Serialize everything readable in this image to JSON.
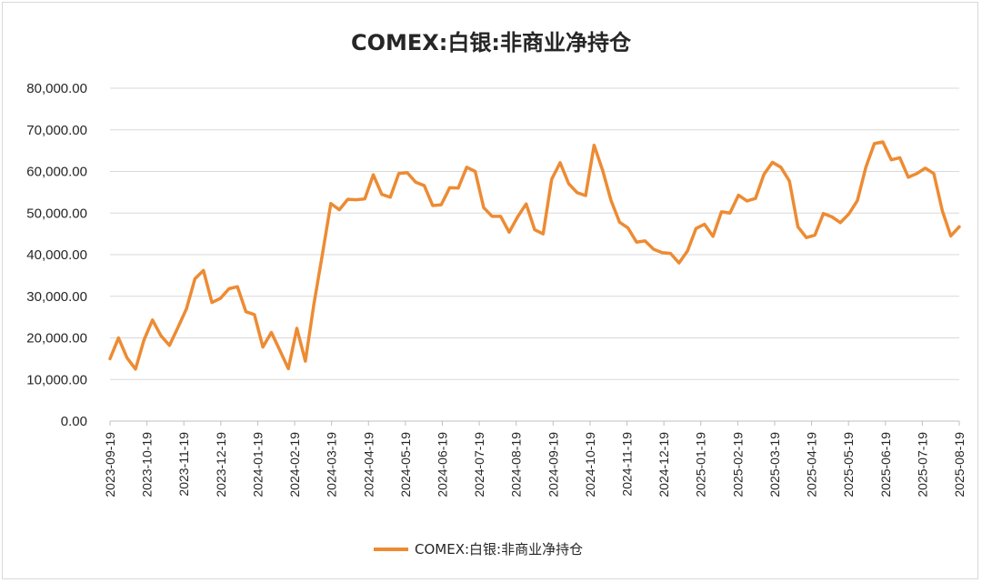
{
  "chart_data": {
    "type": "line",
    "title": "COMEX:白银:非商业净持仓",
    "xlabel": "",
    "ylabel": "",
    "ylim": [
      0,
      80000
    ],
    "yticks": [
      "0.00",
      "10,000.00",
      "20,000.00",
      "30,000.00",
      "40,000.00",
      "50,000.00",
      "60,000.00",
      "70,000.00",
      "80,000.00"
    ],
    "xtick_labels": [
      "2023-09-19",
      "2023-10-19",
      "2023-11-19",
      "2023-12-19",
      "2024-01-19",
      "2024-02-19",
      "2024-03-19",
      "2024-04-19",
      "2024-05-19",
      "2024-06-19",
      "2024-07-19",
      "2024-08-19",
      "2024-09-19",
      "2024-10-19",
      "2024-11-19",
      "2024-12-19",
      "2025-01-19",
      "2025-02-19",
      "2025-03-19",
      "2025-04-19",
      "2025-05-19",
      "2025-06-19",
      "2025-07-19",
      "2025-08-19"
    ],
    "legend_position": "bottom",
    "grid": true,
    "color": "#ED8B33",
    "series": [
      {
        "name": "COMEX:白银:非商业净持仓",
        "values": [
          15000,
          20000,
          15200,
          12500,
          19500,
          24300,
          20500,
          18200,
          22500,
          27000,
          34200,
          36200,
          28500,
          29500,
          31800,
          32300,
          26300,
          25600,
          17800,
          21300,
          17000,
          12600,
          22300,
          14400,
          28000,
          40000,
          52300,
          50800,
          53300,
          53200,
          53400,
          59200,
          54500,
          53800,
          59500,
          59700,
          57400,
          56600,
          51800,
          52000,
          56100,
          56000,
          61000,
          60000,
          51300,
          49200,
          49200,
          45400,
          49100,
          52200,
          46000,
          45000,
          58100,
          62100,
          57100,
          54900,
          54200,
          66300,
          60300,
          53000,
          47800,
          46400,
          43000,
          43300,
          41300,
          40500,
          40300,
          38000,
          40900,
          46300,
          47300,
          44400,
          50300,
          50000,
          54300,
          52900,
          53500,
          59300,
          62200,
          61000,
          57700,
          46700,
          44100,
          44700,
          49900,
          49100,
          47700,
          49800,
          53000,
          61000,
          66700,
          67100,
          62800,
          63300,
          58600,
          59500,
          60800,
          59500,
          50600,
          44500,
          46700
        ]
      }
    ]
  }
}
